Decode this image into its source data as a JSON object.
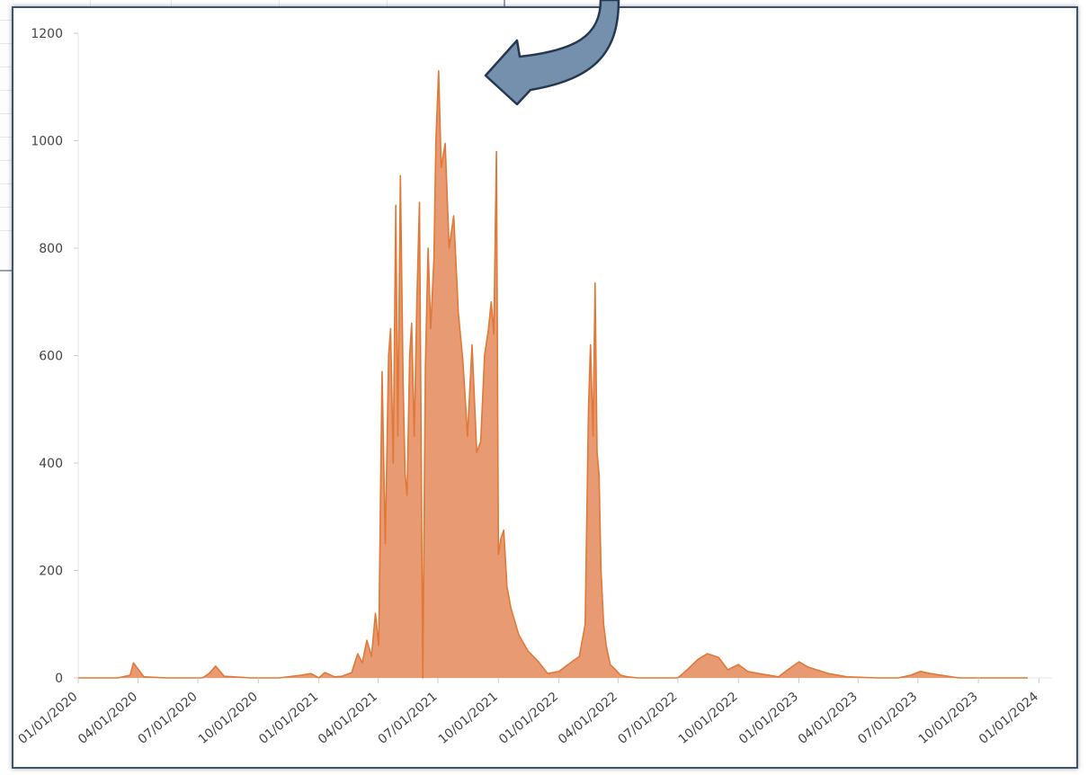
{
  "chart_data": {
    "type": "area",
    "x_type": "date",
    "y_ticks": [
      0,
      200,
      400,
      600,
      800,
      1000,
      1200
    ],
    "ylim": [
      0,
      1200
    ],
    "xlim": [
      "2020-01-01",
      "2023-12-15"
    ],
    "x_tick_labels": [
      "01/01/2020",
      "04/01/2020",
      "07/01/2020",
      "10/01/2020",
      "01/01/2021",
      "04/01/2021",
      "07/01/2021",
      "10/01/2021",
      "01/01/2022",
      "04/01/2022",
      "07/01/2022",
      "10/01/2022",
      "01/01/2023",
      "04/01/2023",
      "07/01/2023",
      "10/01/2023",
      "01/01/2024"
    ],
    "grid": false,
    "legend": "none",
    "colors": {
      "line": "#e07838",
      "fill": "#e89a72"
    },
    "series": [
      {
        "x": [
          "2020-01-01",
          "2020-03-01",
          "2020-03-20",
          "2020-03-25",
          "2020-04-10",
          "2020-05-15",
          "2020-06-25",
          "2020-07-08",
          "2020-07-18",
          "2020-07-28",
          "2020-08-10",
          "2020-09-20",
          "2020-11-01",
          "2020-12-05",
          "2020-12-20",
          "2021-01-01",
          "2021-01-10",
          "2021-01-25",
          "2021-02-05",
          "2021-02-20",
          "2021-03-01",
          "2021-03-08",
          "2021-03-15",
          "2021-03-22",
          "2021-03-28",
          "2021-04-02",
          "2021-04-07",
          "2021-04-12",
          "2021-04-17",
          "2021-04-20",
          "2021-04-24",
          "2021-04-28",
          "2021-05-01",
          "2021-05-05",
          "2021-05-09",
          "2021-05-12",
          "2021-05-15",
          "2021-05-19",
          "2021-05-22",
          "2021-05-26",
          "2021-05-30",
          "2021-06-03",
          "2021-06-08",
          "2021-06-12",
          "2021-06-16",
          "2021-06-20",
          "2021-06-25",
          "2021-06-28",
          "2021-07-02",
          "2021-07-06",
          "2021-07-12",
          "2021-07-18",
          "2021-07-25",
          "2021-08-01",
          "2021-08-08",
          "2021-08-15",
          "2021-08-22",
          "2021-08-29",
          "2021-09-04",
          "2021-09-10",
          "2021-09-16",
          "2021-09-20",
          "2021-09-24",
          "2021-09-28",
          "2021-10-01",
          "2021-10-05",
          "2021-10-09",
          "2021-10-14",
          "2021-10-20",
          "2021-11-01",
          "2021-11-15",
          "2021-12-01",
          "2021-12-15",
          "2022-01-01",
          "2022-01-15",
          "2022-02-01",
          "2022-02-10",
          "2022-02-15",
          "2022-02-18",
          "2022-02-22",
          "2022-02-25",
          "2022-02-28",
          "2022-03-03",
          "2022-03-06",
          "2022-03-10",
          "2022-03-14",
          "2022-03-20",
          "2022-03-28",
          "2022-04-05",
          "2022-04-15",
          "2022-05-01",
          "2022-05-15",
          "2022-06-01",
          "2022-06-20",
          "2022-07-01",
          "2022-07-15",
          "2022-08-01",
          "2022-08-15",
          "2022-09-01",
          "2022-09-15",
          "2022-10-01",
          "2022-10-15",
          "2022-11-01",
          "2022-12-01",
          "2022-12-15",
          "2023-01-01",
          "2023-01-15",
          "2023-02-15",
          "2023-03-15",
          "2023-05-01",
          "2023-06-01",
          "2023-06-20",
          "2023-07-05",
          "2023-07-20",
          "2023-09-01",
          "2023-11-01",
          "2023-12-15"
        ],
        "values": [
          0,
          0,
          5,
          28,
          2,
          0,
          0,
          0,
          8,
          22,
          3,
          0,
          0,
          5,
          8,
          0,
          10,
          2,
          3,
          10,
          45,
          28,
          70,
          40,
          120,
          60,
          570,
          250,
          600,
          650,
          400,
          880,
          450,
          935,
          550,
          380,
          340,
          600,
          660,
          450,
          700,
          885,
          0,
          580,
          800,
          650,
          780,
          1000,
          1130,
          950,
          995,
          800,
          860,
          680,
          590,
          450,
          620,
          420,
          440,
          600,
          650,
          700,
          640,
          980,
          230,
          260,
          275,
          170,
          130,
          80,
          50,
          30,
          8,
          12,
          25,
          40,
          100,
          500,
          620,
          450,
          735,
          420,
          380,
          200,
          100,
          60,
          25,
          15,
          5,
          2,
          0,
          0,
          0,
          0,
          0,
          15,
          35,
          45,
          38,
          15,
          25,
          12,
          8,
          2,
          15,
          30,
          20,
          8,
          2,
          0,
          0,
          5,
          12,
          8,
          0,
          0,
          0
        ]
      }
    ]
  }
}
